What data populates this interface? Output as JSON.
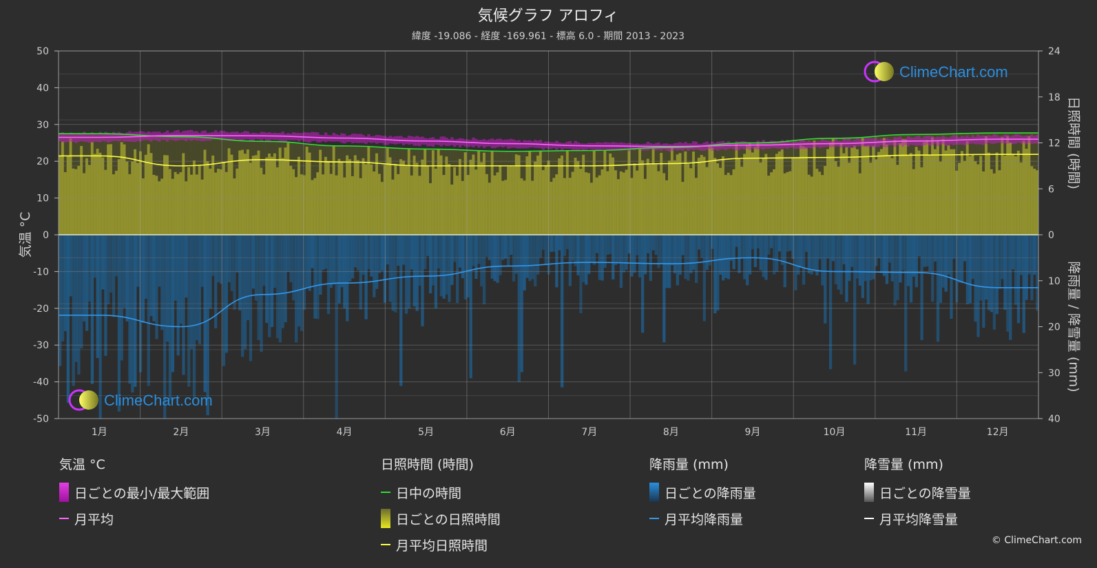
{
  "chart_data": {
    "type": "climate",
    "title": "気候グラフ アロフィ",
    "subtitle": "緯度 -19.086 - 経度 -169.961 - 標高 6.0 - 期間 2013 - 2023",
    "y_left_label": "気温 °C",
    "y_right_top_label": "日照時間 (時間)",
    "y_right_bottom_label": "降雨量 / 降雪量 (mm)",
    "y_left_ticks": [
      "50",
      "40",
      "30",
      "20",
      "10",
      "0",
      "-10",
      "-20",
      "-30",
      "-40",
      "-50"
    ],
    "y_right_top_ticks": [
      "24",
      "18",
      "12",
      "6",
      "0"
    ],
    "y_right_bottom_ticks": [
      "10",
      "20",
      "30",
      "40"
    ],
    "temperature_range": [
      -50,
      50
    ],
    "sunshine_range": [
      0,
      24
    ],
    "precip_range": [
      0,
      40
    ],
    "months": [
      "1月",
      "2月",
      "3月",
      "4月",
      "5月",
      "6月",
      "7月",
      "8月",
      "9月",
      "10月",
      "11月",
      "12月"
    ],
    "series": [
      {
        "name": "月平均",
        "unit": "°C",
        "color": "#ff66ff",
        "values": [
          26.5,
          27.0,
          26.9,
          26.3,
          25.5,
          24.8,
          24.2,
          24.0,
          24.4,
          24.8,
          25.5,
          26.0
        ]
      },
      {
        "name": "日中の時間",
        "unit": "時間",
        "color": "#33dd33",
        "values": [
          13.2,
          12.8,
          12.2,
          11.6,
          11.2,
          10.9,
          11.0,
          11.4,
          12.0,
          12.6,
          13.1,
          13.3
        ]
      },
      {
        "name": "月平均日照時間",
        "unit": "時間",
        "color": "#ffff44",
        "values": [
          10.3,
          9.0,
          9.8,
          9.5,
          9.0,
          9.0,
          9.0,
          9.3,
          10.0,
          10.1,
          10.4,
          10.5
        ]
      },
      {
        "name": "月平均降雨量",
        "unit": "mm",
        "color": "#3399ee",
        "values": [
          17.5,
          20.0,
          13.0,
          10.5,
          9.0,
          6.8,
          6.0,
          6.3,
          5.0,
          8.0,
          8.2,
          11.5
        ]
      }
    ],
    "daily_temp_band": {
      "upper": [
        27.5,
        28.0,
        27.8,
        27.2,
        26.4,
        25.6,
        25.0,
        24.8,
        25.2,
        25.6,
        26.4,
        26.9
      ],
      "lower": [
        25.5,
        26.0,
        26.0,
        25.4,
        24.6,
        24.0,
        23.4,
        23.2,
        23.6,
        24.0,
        24.6,
        25.1
      ]
    }
  },
  "legend": {
    "temp": {
      "title": "気温 °C",
      "item1": "日ごとの最小/最大範囲",
      "item2": "月平均"
    },
    "sun": {
      "title": "日照時間 (時間)",
      "item1": "日中の時間",
      "item2": "日ごとの日照時間",
      "item3": "月平均日照時間"
    },
    "rain": {
      "title": "降雨量 (mm)",
      "item1": "日ごとの降雨量",
      "item2": "月平均降雨量"
    },
    "snow": {
      "title": "降雪量 (mm)",
      "item1": "日ごとの降雪量",
      "item2": "月平均降雪量"
    }
  },
  "brand": "ClimeChart.com",
  "copyright": "© ClimeChart.com",
  "colors": {
    "background": "#2d2d2d",
    "temp_band": "#c020c0",
    "sun_fill": "#a8a830",
    "rain_fill": "#1f5f8f",
    "brand_blue": "#2a8fe0"
  }
}
